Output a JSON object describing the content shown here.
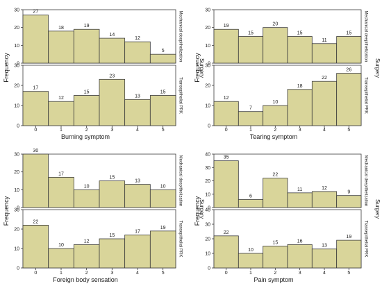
{
  "y_axis_label": "Frequency",
  "group_label": "Surgery",
  "facet_labels": [
    "Mechanical deepithelization",
    "Transepithelial PRK"
  ],
  "colors": {
    "bar_fill": "#d9d59a",
    "bar_stroke": "#3a3a3a",
    "frame": "#3a3a3a"
  },
  "chart_data": [
    {
      "type": "bar",
      "xlabel": "Burning symptom",
      "ylabel": "Frequency",
      "categories": [
        "0",
        "1",
        "2",
        "3",
        "4",
        "5"
      ],
      "ylim": [
        0,
        30
      ],
      "yticks": [
        0,
        10,
        20,
        30
      ],
      "series": [
        {
          "name": "Mechanical deepithelization",
          "values": [
            27,
            18,
            19,
            14,
            12,
            5
          ]
        },
        {
          "name": "Transepithelial PRK",
          "values": [
            17,
            12,
            15,
            23,
            13,
            15
          ]
        }
      ]
    },
    {
      "type": "bar",
      "xlabel": "Tearing symptom",
      "ylabel": "Frequency",
      "categories": [
        "0",
        "1",
        "2",
        "3",
        "4",
        "5"
      ],
      "ylim": [
        0,
        30
      ],
      "yticks": [
        0,
        10,
        20,
        30
      ],
      "series": [
        {
          "name": "Mechanical deepithelization",
          "values": [
            19,
            15,
            20,
            15,
            11,
            15
          ]
        },
        {
          "name": "Transepithelial PRK",
          "values": [
            12,
            7,
            10,
            18,
            22,
            26
          ]
        }
      ]
    },
    {
      "type": "bar",
      "xlabel": "Foreign body sensation",
      "ylabel": "Frequency",
      "categories": [
        "0",
        "1",
        "2",
        "3",
        "4",
        "5"
      ],
      "ylim": [
        0,
        30
      ],
      "yticks": [
        0,
        10,
        20,
        30
      ],
      "series": [
        {
          "name": "Mechanical deepithelization",
          "values": [
            30,
            17,
            10,
            15,
            13,
            10
          ]
        },
        {
          "name": "Transepithelial PRK",
          "values": [
            22,
            10,
            12,
            15,
            17,
            19
          ]
        }
      ]
    },
    {
      "type": "bar",
      "xlabel": "Pain symptom",
      "ylabel": "Frequency",
      "categories": [
        "0",
        "1",
        "2",
        "3",
        "4",
        "5"
      ],
      "ylim": [
        0,
        40
      ],
      "yticks": [
        0,
        10,
        20,
        30,
        40
      ],
      "series": [
        {
          "name": "Mechanical deepithelization",
          "values": [
            35,
            6,
            22,
            11,
            12,
            9
          ]
        },
        {
          "name": "Transepithelial PRK",
          "values": [
            22,
            10,
            15,
            16,
            13,
            19
          ]
        }
      ]
    }
  ]
}
